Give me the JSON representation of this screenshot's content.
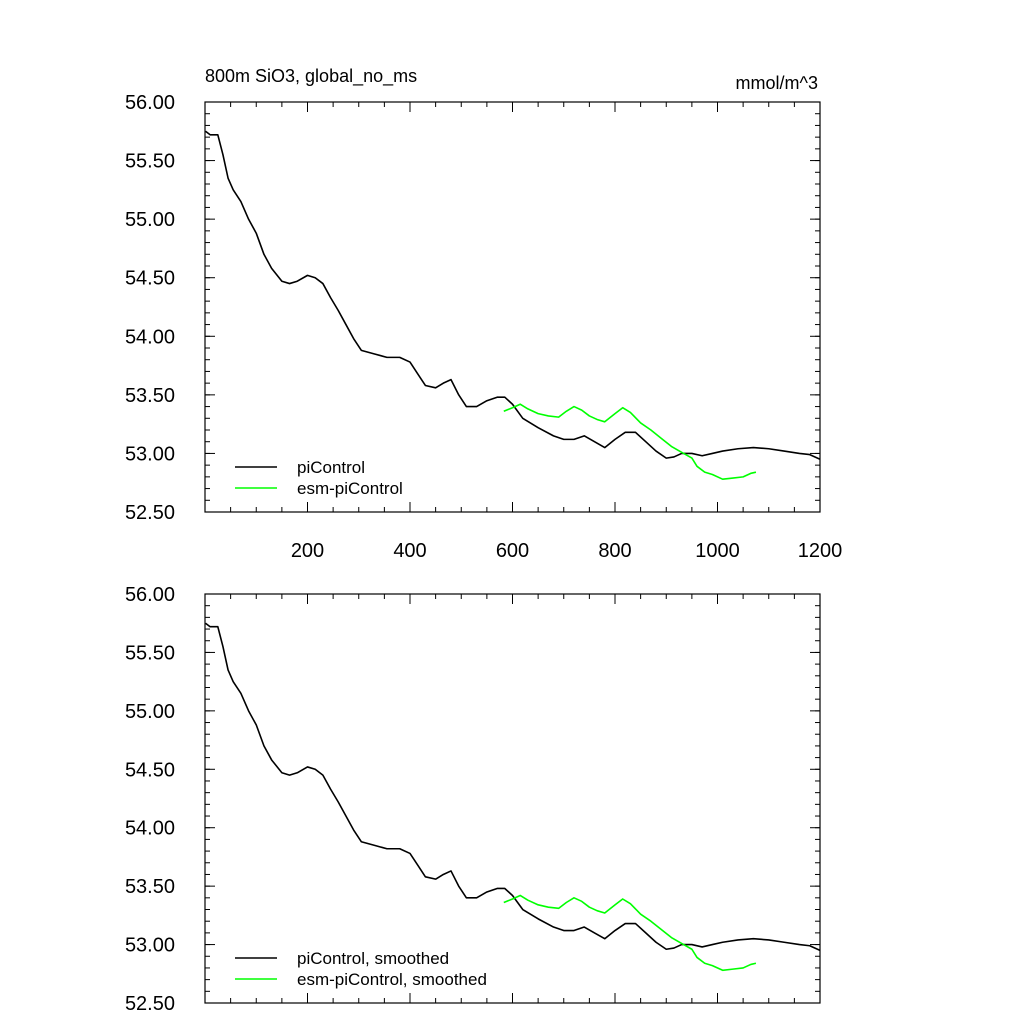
{
  "chart_data": [
    {
      "type": "line",
      "title": "800m SiO3, global_no_ms",
      "units": "mmol/m^3",
      "xlabel": "",
      "ylabel": "",
      "xlim": [
        0,
        1200
      ],
      "ylim": [
        52.5,
        56.0
      ],
      "x_ticks": [
        "200",
        "400",
        "600",
        "800",
        "1000",
        "1200"
      ],
      "y_ticks": [
        "52.50",
        "53.00",
        "53.50",
        "54.00",
        "54.50",
        "55.00",
        "55.50",
        "56.00"
      ],
      "legend_position": "bottom-left",
      "series": [
        {
          "name": "piControl",
          "color": "#000000",
          "points": [
            [
              1,
              55.75
            ],
            [
              10,
              55.72
            ],
            [
              25,
              55.72
            ],
            [
              35,
              55.55
            ],
            [
              45,
              55.35
            ],
            [
              55,
              55.25
            ],
            [
              70,
              55.15
            ],
            [
              85,
              55.0
            ],
            [
              100,
              54.88
            ],
            [
              115,
              54.7
            ],
            [
              130,
              54.58
            ],
            [
              150,
              54.47
            ],
            [
              165,
              54.45
            ],
            [
              180,
              54.47
            ],
            [
              200,
              54.52
            ],
            [
              215,
              54.5
            ],
            [
              230,
              54.45
            ],
            [
              245,
              54.33
            ],
            [
              260,
              54.22
            ],
            [
              275,
              54.1
            ],
            [
              290,
              53.98
            ],
            [
              305,
              53.88
            ],
            [
              330,
              53.85
            ],
            [
              355,
              53.82
            ],
            [
              380,
              53.82
            ],
            [
              400,
              53.78
            ],
            [
              415,
              53.68
            ],
            [
              430,
              53.58
            ],
            [
              450,
              53.56
            ],
            [
              465,
              53.6
            ],
            [
              480,
              53.63
            ],
            [
              495,
              53.5
            ],
            [
              510,
              53.4
            ],
            [
              530,
              53.4
            ],
            [
              550,
              53.45
            ],
            [
              570,
              53.48
            ],
            [
              585,
              53.48
            ],
            [
              600,
              53.42
            ],
            [
              620,
              53.3
            ],
            [
              650,
              53.22
            ],
            [
              680,
              53.15
            ],
            [
              700,
              53.12
            ],
            [
              720,
              53.12
            ],
            [
              740,
              53.15
            ],
            [
              760,
              53.1
            ],
            [
              780,
              53.05
            ],
            [
              800,
              53.12
            ],
            [
              820,
              53.18
            ],
            [
              840,
              53.18
            ],
            [
              860,
              53.1
            ],
            [
              880,
              53.02
            ],
            [
              900,
              52.96
            ],
            [
              915,
              52.97
            ],
            [
              930,
              53.0
            ],
            [
              950,
              53.0
            ],
            [
              970,
              52.98
            ],
            [
              990,
              53.0
            ],
            [
              1010,
              53.02
            ],
            [
              1040,
              53.04
            ],
            [
              1070,
              53.05
            ],
            [
              1100,
              53.04
            ],
            [
              1130,
              53.02
            ],
            [
              1160,
              53.0
            ],
            [
              1180,
              52.99
            ],
            [
              1200,
              52.95
            ]
          ]
        },
        {
          "name": "esm-piControl",
          "color": "#00ff00",
          "points": [
            [
              583,
              53.36
            ],
            [
              600,
              53.39
            ],
            [
              615,
              53.42
            ],
            [
              630,
              53.38
            ],
            [
              650,
              53.34
            ],
            [
              670,
              53.32
            ],
            [
              690,
              53.31
            ],
            [
              705,
              53.36
            ],
            [
              720,
              53.4
            ],
            [
              735,
              53.37
            ],
            [
              750,
              53.32
            ],
            [
              765,
              53.29
            ],
            [
              780,
              53.27
            ],
            [
              800,
              53.34
            ],
            [
              815,
              53.39
            ],
            [
              830,
              53.35
            ],
            [
              850,
              53.26
            ],
            [
              870,
              53.2
            ],
            [
              890,
              53.13
            ],
            [
              910,
              53.06
            ],
            [
              930,
              53.01
            ],
            [
              950,
              52.96
            ],
            [
              960,
              52.89
            ],
            [
              975,
              52.84
            ],
            [
              990,
              52.82
            ],
            [
              1010,
              52.78
            ],
            [
              1030,
              52.79
            ],
            [
              1050,
              52.8
            ],
            [
              1065,
              52.83
            ],
            [
              1075,
              52.84
            ]
          ]
        }
      ]
    },
    {
      "type": "line",
      "title": "",
      "xlabel": "",
      "ylabel": "",
      "xlim": [
        0,
        1200
      ],
      "ylim": [
        52.5,
        56.0
      ],
      "y_ticks": [
        "52.50",
        "53.00",
        "53.50",
        "54.00",
        "54.50",
        "55.00",
        "55.50",
        "56.00"
      ],
      "legend_position": "bottom-left",
      "series": [
        {
          "name": "piControl, smoothed",
          "color": "#000000",
          "points": [
            [
              1,
              55.75
            ],
            [
              10,
              55.72
            ],
            [
              25,
              55.72
            ],
            [
              35,
              55.55
            ],
            [
              45,
              55.35
            ],
            [
              55,
              55.25
            ],
            [
              70,
              55.15
            ],
            [
              85,
              55.0
            ],
            [
              100,
              54.88
            ],
            [
              115,
              54.7
            ],
            [
              130,
              54.58
            ],
            [
              150,
              54.47
            ],
            [
              165,
              54.45
            ],
            [
              180,
              54.47
            ],
            [
              200,
              54.52
            ],
            [
              215,
              54.5
            ],
            [
              230,
              54.45
            ],
            [
              245,
              54.33
            ],
            [
              260,
              54.22
            ],
            [
              275,
              54.1
            ],
            [
              290,
              53.98
            ],
            [
              305,
              53.88
            ],
            [
              330,
              53.85
            ],
            [
              355,
              53.82
            ],
            [
              380,
              53.82
            ],
            [
              400,
              53.78
            ],
            [
              415,
              53.68
            ],
            [
              430,
              53.58
            ],
            [
              450,
              53.56
            ],
            [
              465,
              53.6
            ],
            [
              480,
              53.63
            ],
            [
              495,
              53.5
            ],
            [
              510,
              53.4
            ],
            [
              530,
              53.4
            ],
            [
              550,
              53.45
            ],
            [
              570,
              53.48
            ],
            [
              585,
              53.48
            ],
            [
              600,
              53.42
            ],
            [
              620,
              53.3
            ],
            [
              650,
              53.22
            ],
            [
              680,
              53.15
            ],
            [
              700,
              53.12
            ],
            [
              720,
              53.12
            ],
            [
              740,
              53.15
            ],
            [
              760,
              53.1
            ],
            [
              780,
              53.05
            ],
            [
              800,
              53.12
            ],
            [
              820,
              53.18
            ],
            [
              840,
              53.18
            ],
            [
              860,
              53.1
            ],
            [
              880,
              53.02
            ],
            [
              900,
              52.96
            ],
            [
              915,
              52.97
            ],
            [
              930,
              53.0
            ],
            [
              950,
              53.0
            ],
            [
              970,
              52.98
            ],
            [
              990,
              53.0
            ],
            [
              1010,
              53.02
            ],
            [
              1040,
              53.04
            ],
            [
              1070,
              53.05
            ],
            [
              1100,
              53.04
            ],
            [
              1130,
              53.02
            ],
            [
              1160,
              53.0
            ],
            [
              1180,
              52.99
            ],
            [
              1200,
              52.95
            ]
          ]
        },
        {
          "name": "esm-piControl, smoothed",
          "color": "#00ff00",
          "points": [
            [
              583,
              53.36
            ],
            [
              600,
              53.39
            ],
            [
              615,
              53.42
            ],
            [
              630,
              53.38
            ],
            [
              650,
              53.34
            ],
            [
              670,
              53.32
            ],
            [
              690,
              53.31
            ],
            [
              705,
              53.36
            ],
            [
              720,
              53.4
            ],
            [
              735,
              53.37
            ],
            [
              750,
              53.32
            ],
            [
              765,
              53.29
            ],
            [
              780,
              53.27
            ],
            [
              800,
              53.34
            ],
            [
              815,
              53.39
            ],
            [
              830,
              53.35
            ],
            [
              850,
              53.26
            ],
            [
              870,
              53.2
            ],
            [
              890,
              53.13
            ],
            [
              910,
              53.06
            ],
            [
              930,
              53.01
            ],
            [
              950,
              52.96
            ],
            [
              960,
              52.89
            ],
            [
              975,
              52.84
            ],
            [
              990,
              52.82
            ],
            [
              1010,
              52.78
            ],
            [
              1030,
              52.79
            ],
            [
              1050,
              52.8
            ],
            [
              1065,
              52.83
            ],
            [
              1075,
              52.84
            ]
          ]
        }
      ]
    }
  ]
}
